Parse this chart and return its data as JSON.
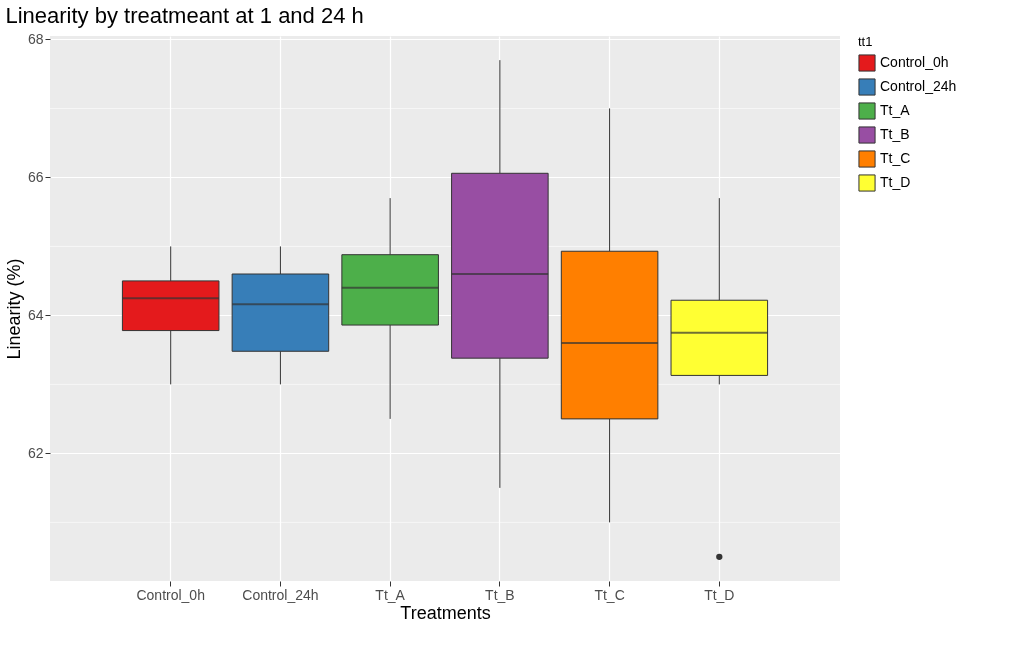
{
  "chart_data": {
    "type": "box",
    "title": "Linearity by treatmeant at 1 and 24 h",
    "xlabel": "Treatments",
    "ylabel": "Linearity (%)",
    "legend_title": "tt1",
    "legend": "right",
    "grid": true,
    "categories": [
      "Control_0h",
      "Control_24h",
      "Tt_A",
      "Tt_B",
      "Tt_C",
      "Tt_D"
    ],
    "series": [
      {
        "name": "Control_0h",
        "color": "#e41a1c",
        "boxes": [
          {
            "low": 63.0,
            "q1": 63.78,
            "median": 64.25,
            "q3": 64.5,
            "high": 65.0
          },
          null,
          null,
          null,
          null,
          null
        ]
      },
      {
        "name": "Control_24h",
        "color": "#377eb8",
        "boxes": [
          null,
          {
            "low": 63.0,
            "q1": 63.48,
            "median": 64.16,
            "q3": 64.6,
            "high": 65.0
          },
          null,
          null,
          null,
          null
        ]
      },
      {
        "name": "Tt_A",
        "color": "#4daf4a",
        "boxes": [
          null,
          null,
          {
            "low": 62.5,
            "q1": 63.86,
            "median": 64.4,
            "q3": 64.88,
            "high": 65.7
          },
          null,
          null,
          null
        ]
      },
      {
        "name": "Tt_B",
        "color": "#984ea3",
        "boxes": [
          null,
          null,
          null,
          {
            "low": 61.5,
            "q1": 63.38,
            "median": 64.6,
            "q3": 66.06,
            "high": 67.7
          },
          null,
          null
        ]
      },
      {
        "name": "Tt_C",
        "color": "#ff7f00",
        "boxes": [
          null,
          null,
          null,
          null,
          {
            "low": 61.0,
            "q1": 62.5,
            "median": 63.6,
            "q3": 64.93,
            "high": 67.0
          },
          null
        ]
      },
      {
        "name": "Tt_D",
        "color": "#ffff33",
        "boxes": [
          null,
          null,
          null,
          null,
          null,
          {
            "low": 63.0,
            "q1": 63.13,
            "median": 63.75,
            "q3": 64.22,
            "high": 65.7,
            "outliers": [
              60.5
            ]
          }
        ]
      }
    ],
    "ylim": [
      60.15,
      68.05
    ],
    "yticks": [
      62,
      64,
      66,
      68
    ]
  }
}
